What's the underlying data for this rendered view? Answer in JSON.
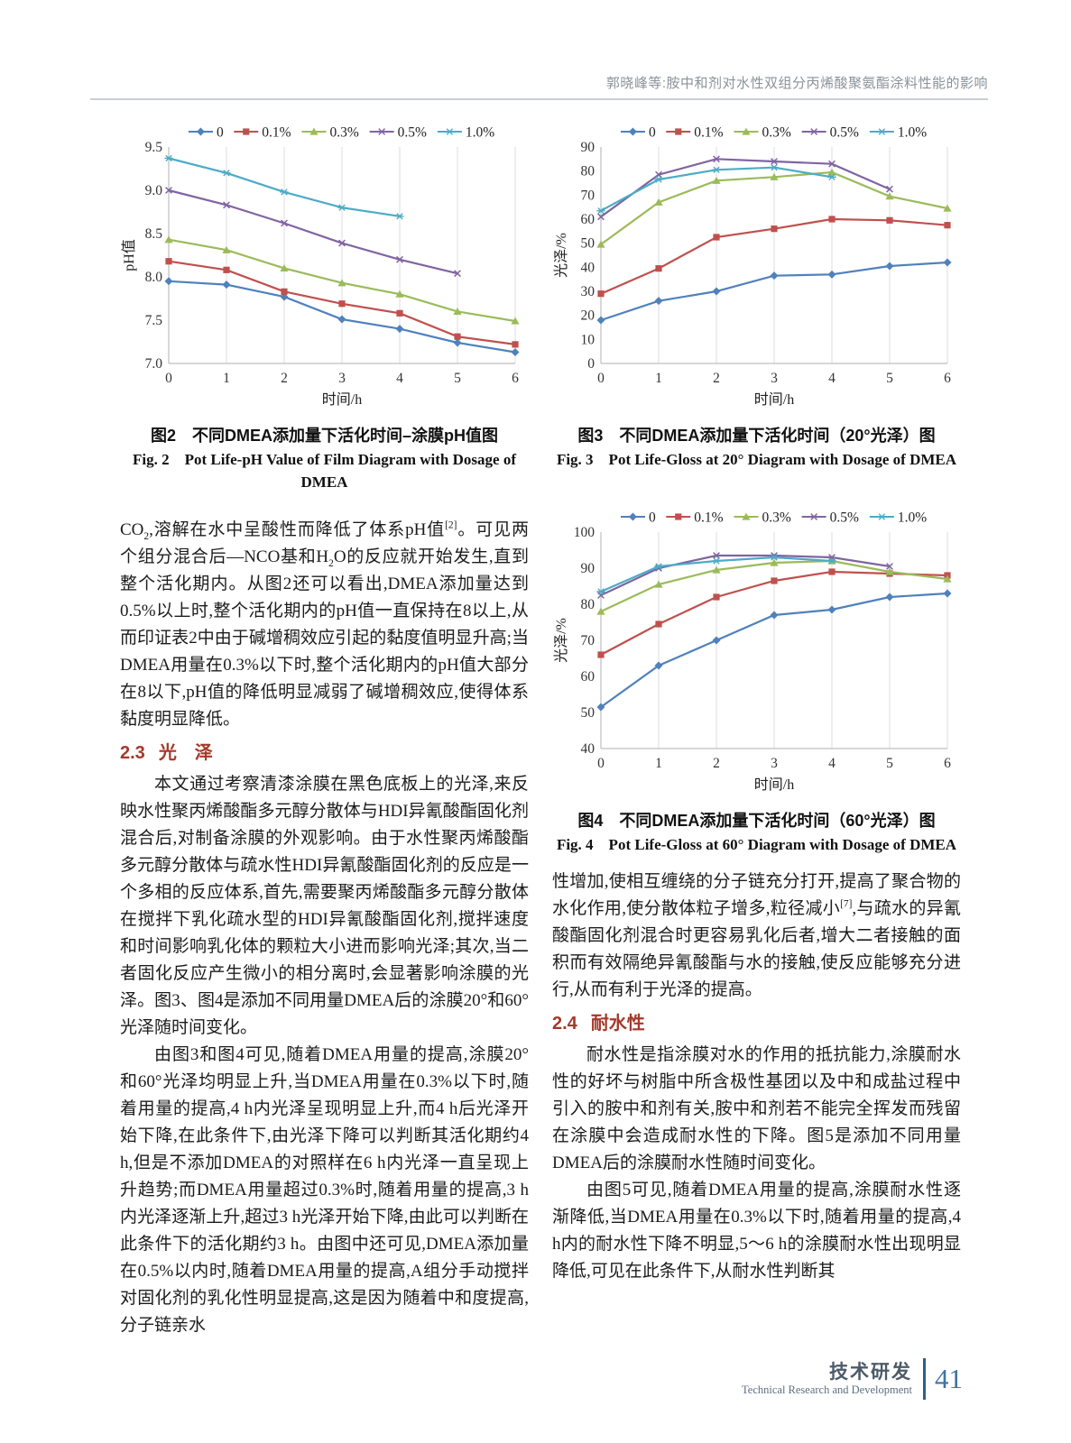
{
  "header": {
    "running_title": "郭晓峰等:胺中和剂对水性双组分丙烯酸聚氨酯涂料性能的影响"
  },
  "footer": {
    "section_zh": "技术研发",
    "section_en": "Technical Research and Development",
    "page_number": "41"
  },
  "style": {
    "heading_color": "#A5392B",
    "rule_color": "#C9CED3",
    "footer_bar_color": "#2E5F8D",
    "page_number_color": "#3F72A6",
    "series_palette": [
      "#4F81BD",
      "#C0504D",
      "#9BBB59",
      "#8064A2",
      "#4BACC6"
    ]
  },
  "article": {
    "left": {
      "p1_html": "CO<sub>2</sub>,溶解在水中呈酸性而降低了体系pH值<sup>[2]</sup>。可见两个组分混合后—NCO基和H<sub>2</sub>O的反应就开始发生,直到整个活化期内。从图2还可以看出,DMEA添加量达到0.5%以上时,整个活化期内的pH值一直保持在8以上,从而印证表2中由于碱增稠效应引起的黏度值明显升高;当DMEA用量在0.3%以下时,整个活化期内的pH值大部分在8以下,pH值的降低明显减弱了碱增稠效应,使得体系黏度明显降低。",
      "heading": {
        "num": "2.3",
        "title": "光　泽"
      },
      "p2": "本文通过考察清漆涂膜在黑色底板上的光泽,来反映水性聚丙烯酸酯多元醇分散体与HDI异氰酸酯固化剂混合后,对制备涂膜的外观影响。由于水性聚丙烯酸酯多元醇分散体与疏水性HDI异氰酸酯固化剂的反应是一个多相的反应体系,首先,需要聚丙烯酸酯多元醇分散体在搅拌下乳化疏水型的HDI异氰酸酯固化剂,搅拌速度和时间影响乳化体的颗粒大小进而影响光泽;其次,当二者固化反应产生微小的相分离时,会显著影响涂膜的光泽。图3、图4是添加不同用量DMEA后的涂膜20°和60°光泽随时间变化。",
      "p3": "由图3和图4可见,随着DMEA用量的提高,涂膜20°和60°光泽均明显上升,当DMEA用量在0.3%以下时,随着用量的提高,4 h内光泽呈现明显上升,而4 h后光泽开始下降,在此条件下,由光泽下降可以判断其活化期约4 h,但是不添加DMEA的对照样在6 h内光泽一直呈现上升趋势;而DMEA用量超过0.3%时,随着用量的提高,3 h内光泽逐渐上升,超过3 h光泽开始下降,由此可以判断在此条件下的活化期约3 h。由图中还可见,DMEA添加量在0.5%以内时,随着DMEA用量的提高,A组分手动搅拌对固化剂的乳化性明显提高,这是因为随着中和度提高,分子链亲水"
    },
    "right": {
      "p1_html": "性增加,使相互缠绕的分子链充分打开,提高了聚合物的水化作用,使分散体粒子增多,粒径减小<sup>[7]</sup>,与疏水的异氰酸酯固化剂混合时更容易乳化后者,增大二者接触的面积而有效隔绝异氰酸酯与水的接触,使反应能够充分进行,从而有利于光泽的提高。",
      "heading": {
        "num": "2.4",
        "title": "耐水性"
      },
      "p2": "耐水性是指涂膜对水的作用的抵抗能力,涂膜耐水性的好坏与树脂中所含极性基团以及中和成盐过程中引入的胺中和剂有关,胺中和剂若不能完全挥发而残留在涂膜中会造成耐水性的下降。图5是添加不同用量DMEA后的涂膜耐水性随时间变化。",
      "p3": "由图5可见,随着DMEA用量的提高,涂膜耐水性逐渐降低,当DMEA用量在0.3%以下时,随着用量的提高,4 h内的耐水性下降不明显,5～6 h的涂膜耐水性出现明显降低,可见在此条件下,从耐水性判断其"
    }
  },
  "chart_data": [
    {
      "id": "fig2",
      "type": "line",
      "xlabel": "时间/h",
      "ylabel": "pH值",
      "x": [
        0,
        1,
        2,
        3,
        4,
        5,
        6
      ],
      "ylim": [
        7.0,
        9.5
      ],
      "yticks": [
        7.0,
        7.5,
        8.0,
        8.5,
        9.0,
        9.5
      ],
      "ytick_labels": [
        "7.0",
        "7.5",
        "8.0",
        "8.5",
        "9.0",
        "9.5"
      ],
      "grid": "vertical",
      "legend_position": "top",
      "series": [
        {
          "name": "0",
          "marker": "diamond",
          "color": "#4F81BD",
          "values": [
            7.95,
            7.91,
            7.77,
            7.51,
            7.4,
            7.24,
            7.13
          ]
        },
        {
          "name": "0.1%",
          "marker": "square",
          "color": "#C0504D",
          "values": [
            8.18,
            8.08,
            7.83,
            7.69,
            7.58,
            7.31,
            7.22
          ]
        },
        {
          "name": "0.3%",
          "marker": "triangle",
          "color": "#9BBB59",
          "values": [
            8.43,
            8.31,
            8.1,
            7.93,
            7.8,
            7.6,
            7.49
          ]
        },
        {
          "name": "0.5%",
          "marker": "x",
          "color": "#8064A2",
          "values": [
            9.0,
            8.83,
            8.62,
            8.39,
            8.2,
            8.04
          ]
        },
        {
          "name": "1.0%",
          "marker": "star",
          "color": "#4BACC6",
          "values": [
            9.37,
            9.2,
            8.98,
            8.8,
            8.7
          ]
        }
      ],
      "caption_zh": "图2　不同DMEA添加量下活化时间–涂膜pH值图",
      "caption_en": "Fig. 2　Pot Life-pH Value of Film Diagram with Dosage of DMEA"
    },
    {
      "id": "fig3",
      "type": "line",
      "xlabel": "时间/h",
      "ylabel": "光泽/%",
      "x": [
        0,
        1,
        2,
        3,
        4,
        5,
        6
      ],
      "ylim": [
        0,
        90
      ],
      "yticks": [
        0,
        10,
        20,
        30,
        40,
        50,
        60,
        70,
        80,
        90
      ],
      "ytick_labels": [
        "0",
        "10",
        "20",
        "30",
        "40",
        "50",
        "60",
        "70",
        "80",
        "90"
      ],
      "grid": "vertical",
      "legend_position": "top",
      "series": [
        {
          "name": "0",
          "marker": "diamond",
          "color": "#4F81BD",
          "values": [
            18,
            26,
            30,
            36.5,
            37,
            40.5,
            42
          ]
        },
        {
          "name": "0.1%",
          "marker": "square",
          "color": "#C0504D",
          "values": [
            29,
            39.5,
            52.5,
            56,
            60,
            59.5,
            57.5
          ]
        },
        {
          "name": "0.3%",
          "marker": "triangle",
          "color": "#9BBB59",
          "values": [
            49.5,
            67,
            76,
            77.5,
            79.5,
            69.5,
            64.5
          ]
        },
        {
          "name": "0.5%",
          "marker": "x",
          "color": "#8064A2",
          "values": [
            61,
            78.5,
            85,
            84,
            83,
            72.5
          ]
        },
        {
          "name": "1.0%",
          "marker": "star",
          "color": "#4BACC6",
          "values": [
            63.5,
            76.5,
            80.5,
            81.5,
            77.5
          ]
        }
      ],
      "caption_zh": "图3　不同DMEA添加量下活化时间（20°光泽）图",
      "caption_en": "Fig. 3　Pot Life-Gloss at 20° Diagram with Dosage of DMEA"
    },
    {
      "id": "fig4",
      "type": "line",
      "xlabel": "时间/h",
      "ylabel": "光泽/%",
      "x": [
        0,
        1,
        2,
        3,
        4,
        5,
        6
      ],
      "ylim": [
        40,
        100
      ],
      "yticks": [
        40,
        50,
        60,
        70,
        80,
        90,
        100
      ],
      "ytick_labels": [
        "40",
        "50",
        "60",
        "70",
        "80",
        "90",
        "100"
      ],
      "grid": "vertical",
      "legend_position": "top",
      "series": [
        {
          "name": "0",
          "marker": "diamond",
          "color": "#4F81BD",
          "values": [
            51.5,
            63,
            70,
            77,
            78.5,
            82,
            83
          ]
        },
        {
          "name": "0.1%",
          "marker": "square",
          "color": "#C0504D",
          "values": [
            66,
            74.5,
            82,
            86.5,
            89,
            88.5,
            88
          ]
        },
        {
          "name": "0.3%",
          "marker": "triangle",
          "color": "#9BBB59",
          "values": [
            78,
            85.5,
            89.5,
            91.5,
            92,
            89,
            87
          ]
        },
        {
          "name": "0.5%",
          "marker": "x",
          "color": "#8064A2",
          "values": [
            82.5,
            90,
            93.5,
            93.5,
            93,
            90.5
          ]
        },
        {
          "name": "1.0%",
          "marker": "star",
          "color": "#4BACC6",
          "values": [
            83.5,
            90.5,
            92,
            93,
            92
          ]
        }
      ],
      "caption_zh": "图4　不同DMEA添加量下活化时间（60°光泽）图",
      "caption_en": "Fig. 4　Pot Life-Gloss at 60° Diagram with Dosage of DMEA"
    }
  ]
}
